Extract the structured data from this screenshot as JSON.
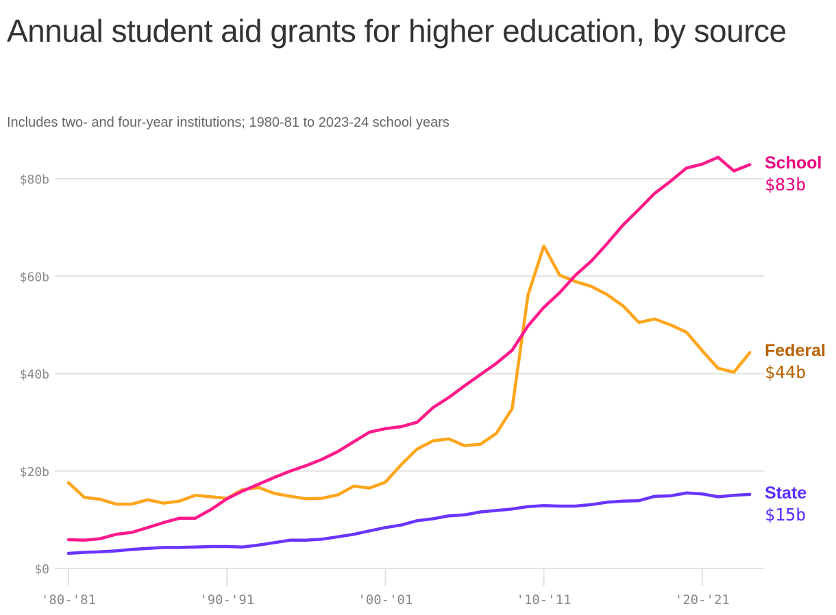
{
  "chart_data": {
    "type": "line",
    "title": "Annual student aid grants for higher education, by source",
    "subtitle": "Includes two- and four-year institutions; 1980-81 to 2023-24 school years",
    "xlabel": "",
    "ylabel": "",
    "x_start_year": 1980,
    "x": [
      1980,
      1981,
      1982,
      1983,
      1984,
      1985,
      1986,
      1987,
      1988,
      1989,
      1990,
      1991,
      1992,
      1993,
      1994,
      1995,
      1996,
      1997,
      1998,
      1999,
      2000,
      2001,
      2002,
      2003,
      2004,
      2005,
      2006,
      2007,
      2008,
      2009,
      2010,
      2011,
      2012,
      2013,
      2014,
      2015,
      2016,
      2017,
      2018,
      2019,
      2020,
      2021,
      2022,
      2023
    ],
    "x_ticks": [
      {
        "year": 1980,
        "label": "'80-'81"
      },
      {
        "year": 1990,
        "label": "'90-'91"
      },
      {
        "year": 2000,
        "label": "'00-'01"
      },
      {
        "year": 2010,
        "label": "'10-'11"
      },
      {
        "year": 2020,
        "label": "'20-'21"
      }
    ],
    "y_ticks": [
      {
        "value": 0,
        "label": "$0"
      },
      {
        "value": 20,
        "label": "$20b"
      },
      {
        "value": 40,
        "label": "$40b"
      },
      {
        "value": 60,
        "label": "$60b"
      },
      {
        "value": 80,
        "label": "$80b"
      }
    ],
    "ylim": [
      0,
      80
    ],
    "grid": true,
    "legend": "direct labels at right end of lines",
    "series": [
      {
        "name": "School",
        "end_label": "$83b",
        "color": "#ff1a8c",
        "label_color": "#e8007f",
        "values": [
          5.9,
          5.8,
          6.1,
          7.0,
          7.4,
          8.4,
          9.4,
          10.3,
          10.3,
          12.1,
          14.3,
          15.9,
          17.3,
          18.7,
          20.0,
          21.1,
          22.4,
          24.0,
          26.0,
          28.0,
          28.7,
          29.1,
          30.0,
          33.0,
          35.1,
          37.5,
          39.8,
          42.1,
          44.8,
          49.8,
          53.6,
          56.6,
          60.2,
          63.1,
          66.7,
          70.5,
          73.7,
          77.0,
          79.5,
          82.2,
          83.0,
          84.4,
          81.6,
          82.9
        ]
      },
      {
        "name": "Federal",
        "end_label": "$44b",
        "color": "#ffa51c",
        "label_color": "#b86200",
        "values": [
          17.6,
          14.6,
          14.2,
          13.2,
          13.2,
          14.1,
          13.4,
          13.8,
          15.0,
          14.7,
          14.4,
          16.2,
          16.6,
          15.4,
          14.8,
          14.3,
          14.4,
          15.1,
          16.9,
          16.5,
          17.7,
          21.3,
          24.5,
          26.2,
          26.6,
          25.2,
          25.5,
          27.7,
          32.8,
          56.1,
          66.2,
          60.2,
          58.9,
          57.9,
          56.2,
          53.9,
          50.5,
          51.2,
          50.0,
          48.5,
          44.7,
          41.1,
          40.3,
          44.3
        ]
      },
      {
        "name": "State",
        "end_label": "$15b",
        "color": "#6a35ff",
        "label_color": "#5b2eff",
        "values": [
          3.1,
          3.3,
          3.4,
          3.6,
          3.9,
          4.1,
          4.3,
          4.3,
          4.4,
          4.5,
          4.5,
          4.4,
          4.8,
          5.3,
          5.8,
          5.8,
          6.0,
          6.5,
          7.0,
          7.7,
          8.4,
          8.9,
          9.8,
          10.2,
          10.8,
          11.0,
          11.6,
          11.9,
          12.2,
          12.7,
          12.9,
          12.8,
          12.8,
          13.1,
          13.6,
          13.8,
          13.9,
          14.8,
          14.9,
          15.5,
          15.3,
          14.7,
          15.0,
          15.2
        ]
      }
    ]
  }
}
